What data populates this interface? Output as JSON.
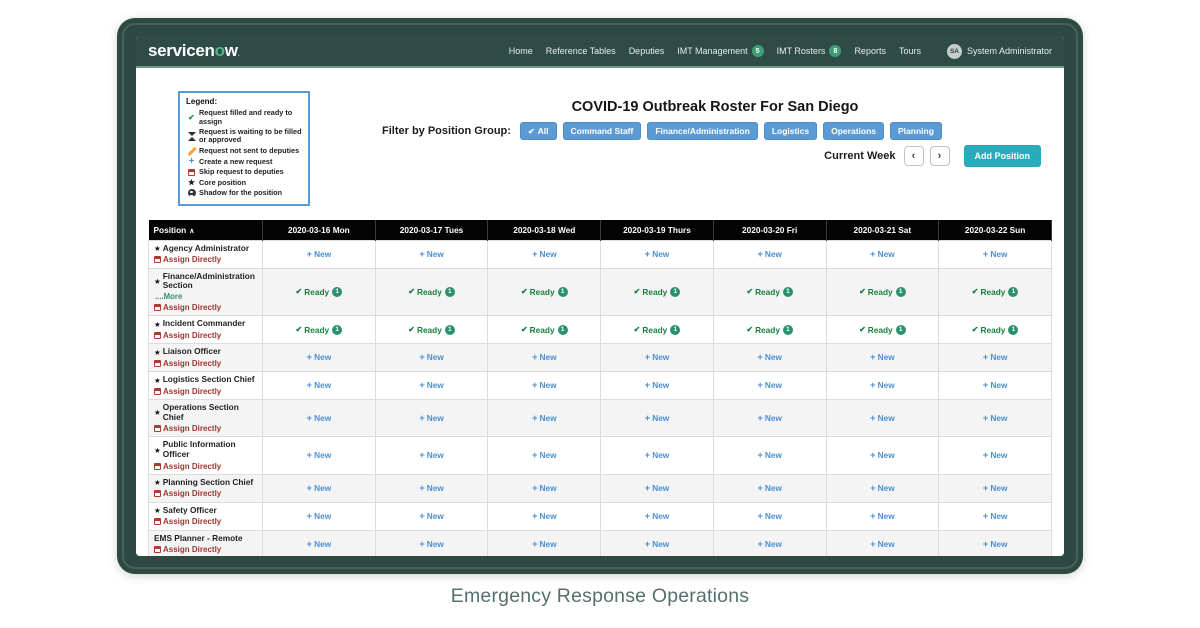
{
  "brand": {
    "prefix": "servicen",
    "accent": "o",
    "suffix": "w",
    "trailing": "."
  },
  "nav": {
    "items": [
      {
        "label": "Home"
      },
      {
        "label": "Reference Tables"
      },
      {
        "label": "Deputies"
      },
      {
        "label": "IMT Management",
        "badge": "5"
      },
      {
        "label": "IMT Rosters",
        "badge": "8"
      },
      {
        "label": "Reports"
      },
      {
        "label": "Tours"
      }
    ],
    "user": {
      "initials": "SA",
      "name": "System Administrator"
    }
  },
  "legend": {
    "title": "Legend:",
    "items": [
      {
        "icon": "check-icon",
        "text": "Request filled and ready to assign"
      },
      {
        "icon": "hourglass-icon",
        "text": "Request is waiting to be filled or approved"
      },
      {
        "icon": "pencil-icon",
        "text": "Request not sent to deputies"
      },
      {
        "icon": "plus-icon",
        "text": "Create a new request"
      },
      {
        "icon": "calendar-icon",
        "text": "Skip request to deputies"
      },
      {
        "icon": "star-icon",
        "text": "Core position"
      },
      {
        "icon": "person-icon",
        "text": "Shadow for the position"
      }
    ]
  },
  "page": {
    "title": "COVID-19 Outbreak Roster For San Diego"
  },
  "filters": {
    "label": "Filter by Position Group:",
    "buttons": [
      {
        "label": "All",
        "checked": true
      },
      {
        "label": "Command Staff"
      },
      {
        "label": "Finance/Administration"
      },
      {
        "label": "Logistics"
      },
      {
        "label": "Operations"
      },
      {
        "label": "Planning"
      }
    ]
  },
  "week_nav": {
    "label": "Current Week",
    "prev": "‹",
    "next": "›",
    "add_label": "Add Position"
  },
  "table": {
    "position_header": "Position",
    "sort_caret": "∧",
    "day_headers": [
      "2020-03-16 Mon",
      "2020-03-17 Tues",
      "2020-03-18 Wed",
      "2020-03-19 Thurs",
      "2020-03-20 Fri",
      "2020-03-21 Sat",
      "2020-03-22 Sun"
    ],
    "new_label": "New",
    "ready_label": "Ready",
    "assign_label": "Assign Directly",
    "more_label": "....More",
    "rows": [
      {
        "name": "Agency Administrator",
        "core": true,
        "cell_type": "new"
      },
      {
        "name": "Finance/Administration Section",
        "core": true,
        "has_more": true,
        "cell_type": "ready",
        "ready_count": "1"
      },
      {
        "name": "Incident Commander",
        "core": true,
        "cell_type": "ready",
        "ready_count": "1"
      },
      {
        "name": "Liaison Officer",
        "core": true,
        "cell_type": "new"
      },
      {
        "name": "Logistics Section Chief",
        "core": true,
        "cell_type": "new"
      },
      {
        "name": "Operations Section Chief",
        "core": true,
        "cell_type": "new"
      },
      {
        "name": "Public Information Officer",
        "core": true,
        "cell_type": "new"
      },
      {
        "name": "Planning Section Chief",
        "core": true,
        "cell_type": "new"
      },
      {
        "name": "Safety Officer",
        "core": true,
        "cell_type": "new"
      },
      {
        "name": "EMS Planner - Remote",
        "core": false,
        "cell_type": "new"
      }
    ]
  },
  "caption": "Emergency Response Operations",
  "colors": {
    "frame": "#2e4842",
    "navbar": "#2f4b46",
    "brand_accent": "#53b58e",
    "badge_green": "#3d9e74",
    "filter_blue": "#5b9bd5",
    "add_teal": "#28acbb",
    "new_blue": "#4a90d2",
    "ready_green": "#17813d",
    "ready_badge": "#2a9170",
    "assign_red": "#a03430",
    "legend_border": "#5b9bd5",
    "table_header": "#040404"
  }
}
